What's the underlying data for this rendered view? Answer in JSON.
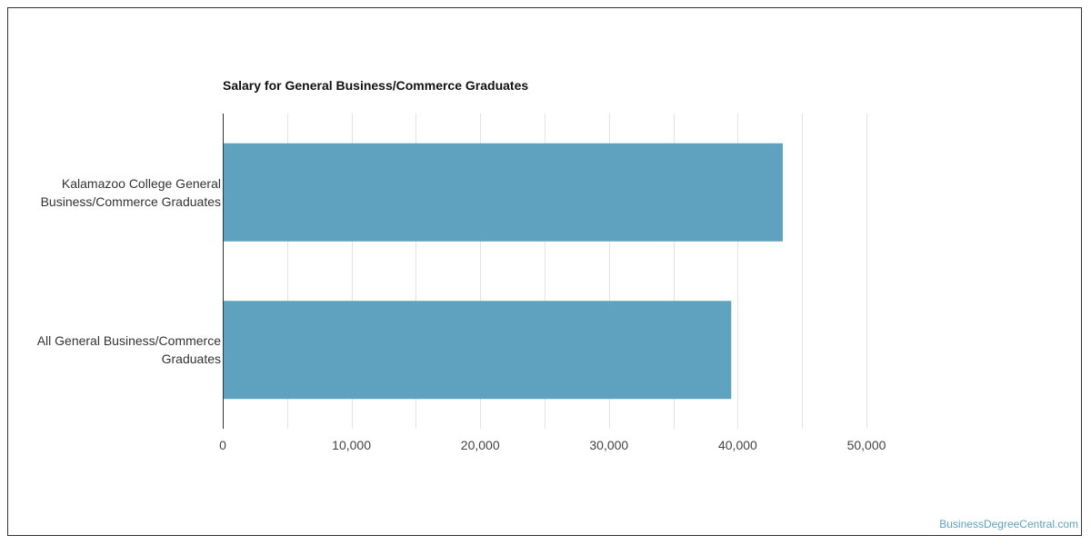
{
  "chart_data": {
    "type": "bar",
    "orientation": "horizontal",
    "title": "Salary for General Business/Commerce Graduates",
    "categories": [
      [
        "Kalamazoo College General",
        "Business/Commerce Graduates"
      ],
      [
        "All General Business/Commerce",
        "Graduates"
      ]
    ],
    "values": [
      43500,
      39500
    ],
    "xlim": [
      0,
      50000
    ],
    "xticks": [
      0,
      10000,
      20000,
      30000,
      40000,
      50000
    ],
    "xtick_labels": [
      "0",
      "10,000",
      "20,000",
      "30,000",
      "40,000",
      "50,000"
    ],
    "grid": true,
    "bar_color": "#5ea2c0"
  },
  "watermark": "BusinessDegreeCentral.com"
}
